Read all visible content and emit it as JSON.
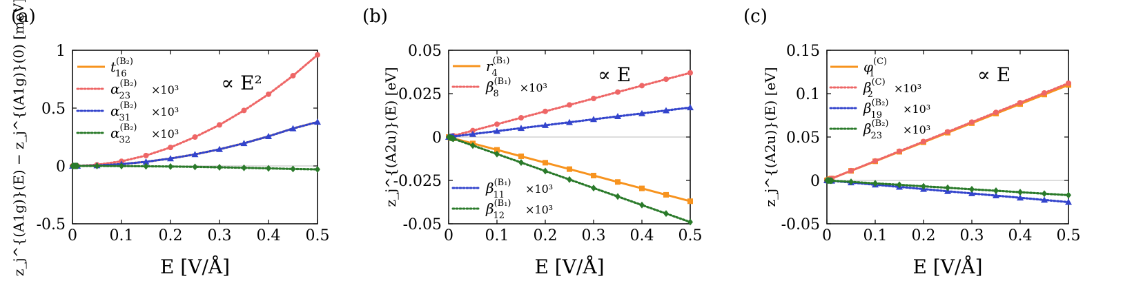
{
  "figure": {
    "panels": [
      {
        "label": "(a)",
        "ylabel": "z_j^{(A1g)}(E) − z_j^{(A1g)}(0) [meV]",
        "xlabel": "E  [V/Å]",
        "annotation": "∝ E²"
      },
      {
        "label": "(b)",
        "ylabel": "z_j^{(A2u)}(E) [eV]",
        "xlabel": "E  [V/Å]",
        "annotation": "∝ E"
      },
      {
        "label": "(c)",
        "ylabel": "z_j^{(A2u)}(E) [eV]",
        "xlabel": "E  [V/Å]",
        "annotation": "∝ E"
      }
    ]
  },
  "chart_data": [
    {
      "type": "line",
      "title": "(a)",
      "xlabel": "E  [V/Å]",
      "ylabel": "z_j^{(A1g)}(E) − z_j^{(A1g)}(0) [meV]",
      "annotation": "∝ E²",
      "xlim": [
        0,
        0.5
      ],
      "ylim": [
        -0.5,
        1
      ],
      "xticks": [
        "0",
        "0.1",
        "0.2",
        "0.3",
        "0.4",
        "0.5"
      ],
      "yticks": [
        "-0.5",
        "0",
        "0.5",
        "1"
      ],
      "x": [
        0,
        0.002,
        0.004,
        0.006,
        0.008,
        0.01,
        0.05,
        0.1,
        0.15,
        0.2,
        0.25,
        0.3,
        0.35,
        0.4,
        0.45,
        0.5
      ],
      "series": [
        {
          "name": "t16(B2)",
          "label_main": "t",
          "label_sub": "16",
          "label_sup": "(B₂)",
          "scale": "",
          "style": "solid",
          "color": "#f7931e",
          "marker": "none",
          "values": [
            0,
            0,
            0,
            0,
            0,
            0,
            0.004,
            0.016,
            0.036,
            0.064,
            0.1,
            0.144,
            0.196,
            0.256,
            0.324,
            0.38
          ]
        },
        {
          "name": "α23(B2) ×10³",
          "label_main": "α",
          "label_sub": "23",
          "label_sup": "(B₂)",
          "scale": "×10³",
          "style": "dotted",
          "color": "#ee6666",
          "marker": "circle",
          "values": [
            0,
            0,
            0,
            0,
            0,
            0,
            0.01,
            0.04,
            0.09,
            0.16,
            0.25,
            0.355,
            0.48,
            0.62,
            0.78,
            0.96
          ]
        },
        {
          "name": "α31(B2) ×10³",
          "label_main": "α",
          "label_sub": "31",
          "label_sup": "(B₂)",
          "scale": "×10³",
          "style": "dotted",
          "color": "#3344cc",
          "marker": "triangle",
          "values": [
            0,
            0,
            0,
            0,
            0,
            0,
            0.004,
            0.016,
            0.036,
            0.064,
            0.1,
            0.144,
            0.196,
            0.256,
            0.324,
            0.38
          ]
        },
        {
          "name": "α32(B2) ×10³",
          "label_main": "α",
          "label_sub": "32",
          "label_sup": "(B₂)",
          "scale": "×10³",
          "style": "dotted",
          "color": "#2a7a2a",
          "marker": "diamond",
          "values": [
            0,
            0,
            0,
            0,
            0,
            0,
            0,
            -0.001,
            -0.003,
            -0.005,
            -0.008,
            -0.012,
            -0.016,
            -0.021,
            -0.026,
            -0.03
          ]
        }
      ]
    },
    {
      "type": "line",
      "title": "(b)",
      "xlabel": "E  [V/Å]",
      "ylabel": "z_j^{(A2u)}(E) [eV]",
      "annotation": "∝ E",
      "xlim": [
        0,
        0.5
      ],
      "ylim": [
        -0.05,
        0.05
      ],
      "xticks": [
        "0",
        "0.1",
        "0.2",
        "0.3",
        "0.4",
        "0.5"
      ],
      "yticks": [
        "-0.05",
        "-0.025",
        "0",
        "0.025",
        "0.05"
      ],
      "x": [
        0,
        0.002,
        0.004,
        0.006,
        0.008,
        0.01,
        0.05,
        0.1,
        0.15,
        0.2,
        0.25,
        0.3,
        0.35,
        0.4,
        0.45,
        0.5
      ],
      "series": [
        {
          "name": "r4(B1)",
          "label_main": "r",
          "label_sub": "4",
          "label_sup": "(B₁)",
          "scale": "",
          "style": "solid",
          "color": "#f7931e",
          "marker": "square",
          "values": [
            0,
            -0.00015,
            -0.0003,
            -0.00045,
            -0.0006,
            -0.00075,
            -0.0037,
            -0.0074,
            -0.0111,
            -0.0148,
            -0.0185,
            -0.0222,
            -0.0259,
            -0.0296,
            -0.0333,
            -0.037
          ]
        },
        {
          "name": "β8(B1) ×10³",
          "label_main": "β",
          "label_sub": "8",
          "label_sup": "(B₁)",
          "scale": "×10³",
          "style": "dotted",
          "color": "#ee6666",
          "marker": "circle",
          "values": [
            0,
            0.00015,
            0.0003,
            0.00045,
            0.0006,
            0.00075,
            0.0037,
            0.0074,
            0.0111,
            0.0148,
            0.0185,
            0.0222,
            0.0259,
            0.0296,
            0.0333,
            0.037
          ]
        },
        {
          "name": "β11(B1) ×10³",
          "label_main": "β",
          "label_sub": "11",
          "label_sup": "(B₁)",
          "scale": "×10³",
          "style": "dotted",
          "color": "#3344cc",
          "marker": "triangle",
          "values": [
            0,
            7e-05,
            0.00014,
            0.0002,
            0.00027,
            0.00034,
            0.0017,
            0.0034,
            0.0051,
            0.0068,
            0.0085,
            0.0102,
            0.0119,
            0.0136,
            0.0153,
            0.017
          ]
        },
        {
          "name": "β12(B1) ×10³",
          "label_main": "β",
          "label_sub": "12",
          "label_sup": "(B₁)",
          "scale": "×10³",
          "style": "dotted",
          "color": "#2a7a2a",
          "marker": "diamond",
          "values": [
            0,
            -0.0002,
            -0.0004,
            -0.0006,
            -0.0008,
            -0.001,
            -0.0049,
            -0.0098,
            -0.0147,
            -0.0196,
            -0.0245,
            -0.0294,
            -0.0343,
            -0.0392,
            -0.0441,
            -0.049
          ]
        }
      ]
    },
    {
      "type": "line",
      "title": "(c)",
      "xlabel": "E  [V/Å]",
      "ylabel": "z_j^{(A2u)}(E) [eV]",
      "annotation": "∝ E",
      "xlim": [
        0,
        0.5
      ],
      "ylim": [
        -0.05,
        0.15
      ],
      "xticks": [
        "0",
        "0.1",
        "0.2",
        "0.3",
        "0.4",
        "0.5"
      ],
      "yticks": [
        "-0.05",
        "0",
        "0.05",
        "0.1",
        "0.15"
      ],
      "x": [
        0,
        0.002,
        0.004,
        0.006,
        0.008,
        0.01,
        0.05,
        0.1,
        0.15,
        0.2,
        0.25,
        0.3,
        0.35,
        0.4,
        0.45,
        0.5
      ],
      "series": [
        {
          "name": "φ1(C)",
          "label_main": "φ",
          "label_sub": "1",
          "label_sup": "(C)",
          "scale": "",
          "style": "solid",
          "color": "#f7931e",
          "marker": "square",
          "values": [
            0,
            0.00044,
            0.00088,
            0.00132,
            0.00176,
            0.0022,
            0.011,
            0.022,
            0.033,
            0.044,
            0.055,
            0.066,
            0.077,
            0.088,
            0.099,
            0.11
          ]
        },
        {
          "name": "β2(C) ×10³",
          "label_main": "β",
          "label_sub": "2",
          "label_sup": "(C)",
          "scale": "×10³",
          "style": "dotted",
          "color": "#ee6666",
          "marker": "circle",
          "values": [
            0,
            0.00045,
            0.0009,
            0.00135,
            0.0018,
            0.00225,
            0.0112,
            0.0224,
            0.0336,
            0.0448,
            0.056,
            0.0672,
            0.0784,
            0.0896,
            0.1008,
            0.112
          ]
        },
        {
          "name": "β19(B2) ×10³",
          "label_main": "β",
          "label_sub": "19",
          "label_sup": "(B₂)",
          "scale": "×10³",
          "style": "dotted",
          "color": "#3344cc",
          "marker": "triangle",
          "values": [
            0,
            -0.0001,
            -0.0002,
            -0.0003,
            -0.0004,
            -0.0005,
            -0.0025,
            -0.005,
            -0.0075,
            -0.01,
            -0.0125,
            -0.015,
            -0.0175,
            -0.02,
            -0.0225,
            -0.025
          ]
        },
        {
          "name": "β23(B2) ×10³",
          "label_main": "β",
          "label_sub": "23",
          "label_sup": "(B₂)",
          "scale": "×10³",
          "style": "dotted",
          "color": "#2a7a2a",
          "marker": "diamond",
          "values": [
            0,
            -7e-05,
            -0.00014,
            -0.0002,
            -0.00027,
            -0.00034,
            -0.0017,
            -0.0034,
            -0.0051,
            -0.0068,
            -0.0085,
            -0.0102,
            -0.0119,
            -0.0136,
            -0.0153,
            -0.017
          ]
        }
      ]
    }
  ]
}
